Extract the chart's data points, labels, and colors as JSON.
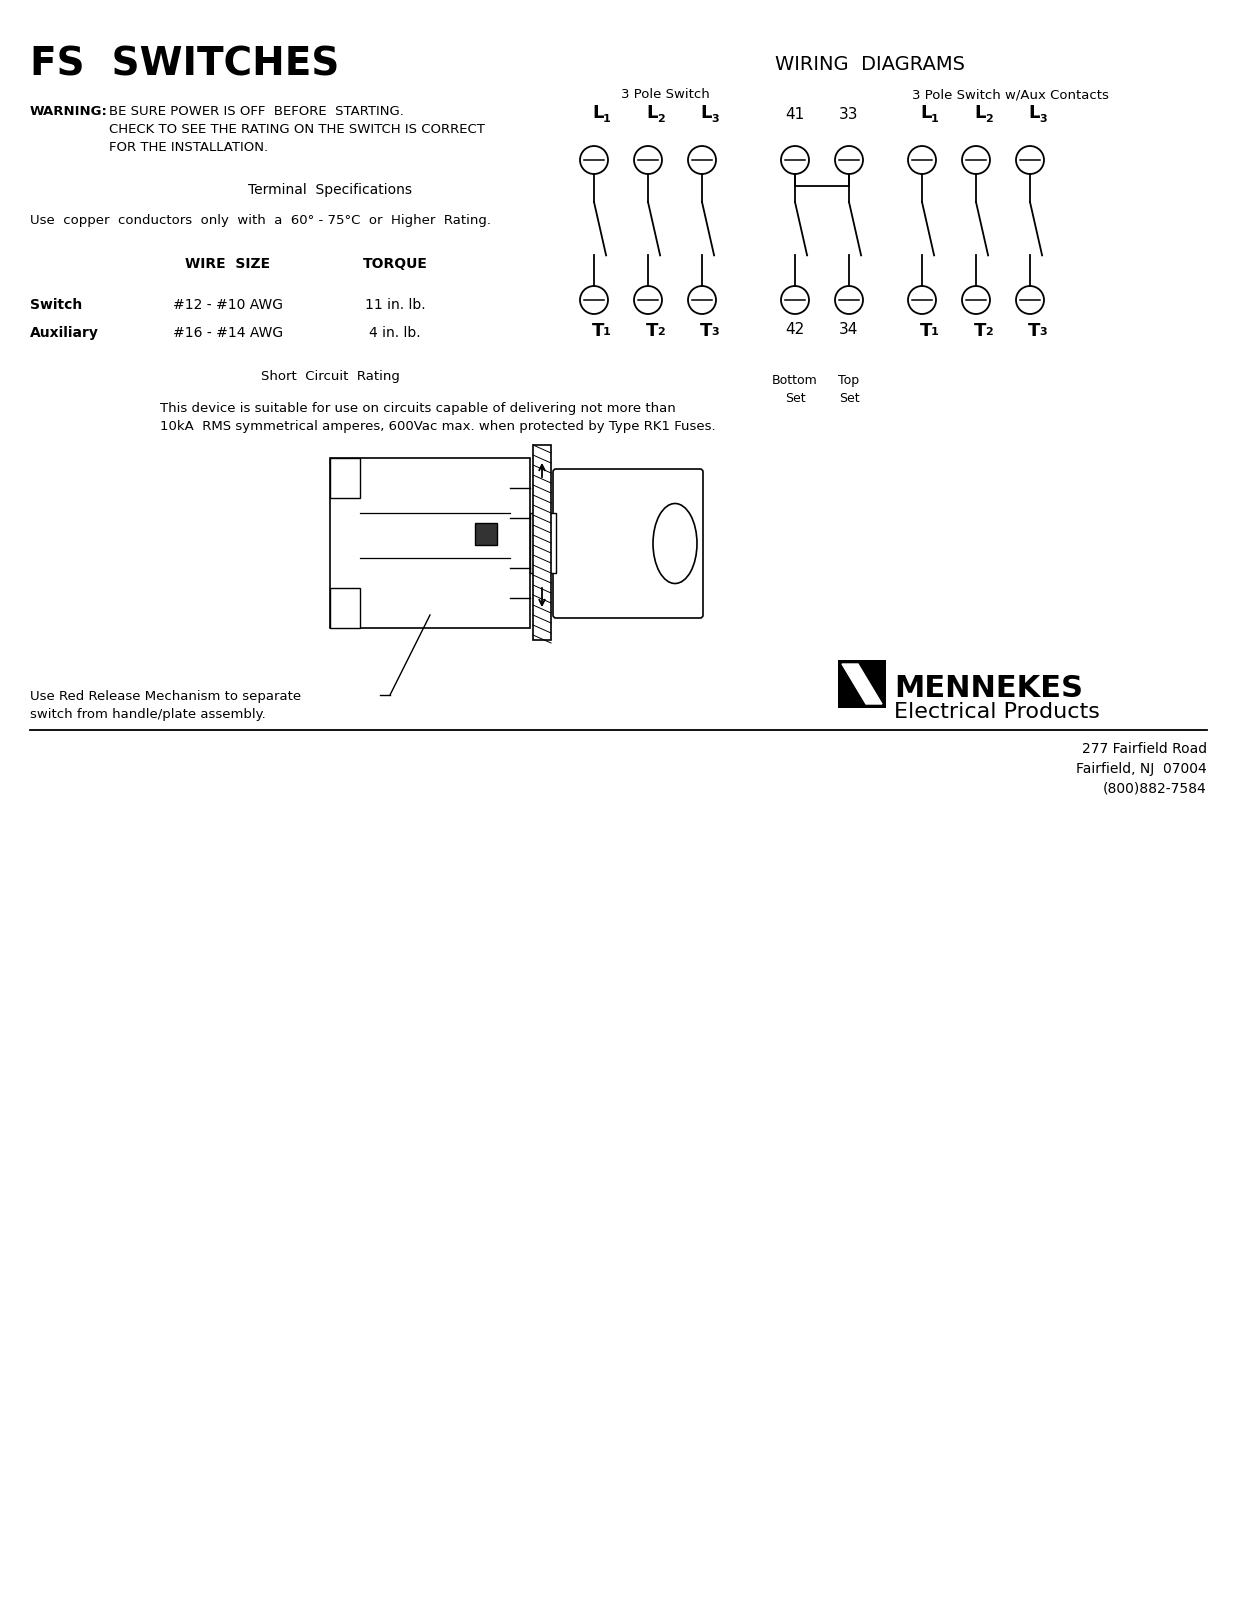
{
  "title": "FS  SWITCHES",
  "wiring_title": "WIRING  DIAGRAMS",
  "warning_bold": "WARNING:",
  "warning_text": " BE SURE POWER IS OFF  BEFORE  STARTING.\nCHECK TO SEE THE RATING ON THE SWITCH IS CORRECT\nFOR THE INSTALLATION.",
  "terminal_spec": "Terminal  Specifications",
  "copper_text": "Use  copper  conductors  only  with  a  60° - 75°C  or  Higher  Rating.",
  "wire_size_header": "WIRE  SIZE",
  "torque_header": "TORQUE",
  "switch_label": "Switch",
  "switch_wire": "#12 - #10 AWG",
  "switch_torque": "11 in. lb.",
  "aux_label": "Auxiliary",
  "aux_wire": "#16 - #14 AWG",
  "aux_torque": "4 in. lb.",
  "short_circuit": "Short  Circuit  Rating",
  "short_desc": "This device is suitable for use on circuits capable of delivering not more than\n10kA  RMS symmetrical amperes, 600Vac max. when protected by Type RK1 Fuses.",
  "release_text": "Use Red Release Mechanism to separate\nswitch from handle/plate assembly.",
  "three_pole_label": "3 Pole Switch",
  "three_pole_aux_label": "3 Pole Switch w/Aux Contacts",
  "address1": "277 Fairfield Road",
  "address2": "Fairfield, NJ  07004",
  "address3": "(800)882-7584",
  "bg_color": "#ffffff"
}
